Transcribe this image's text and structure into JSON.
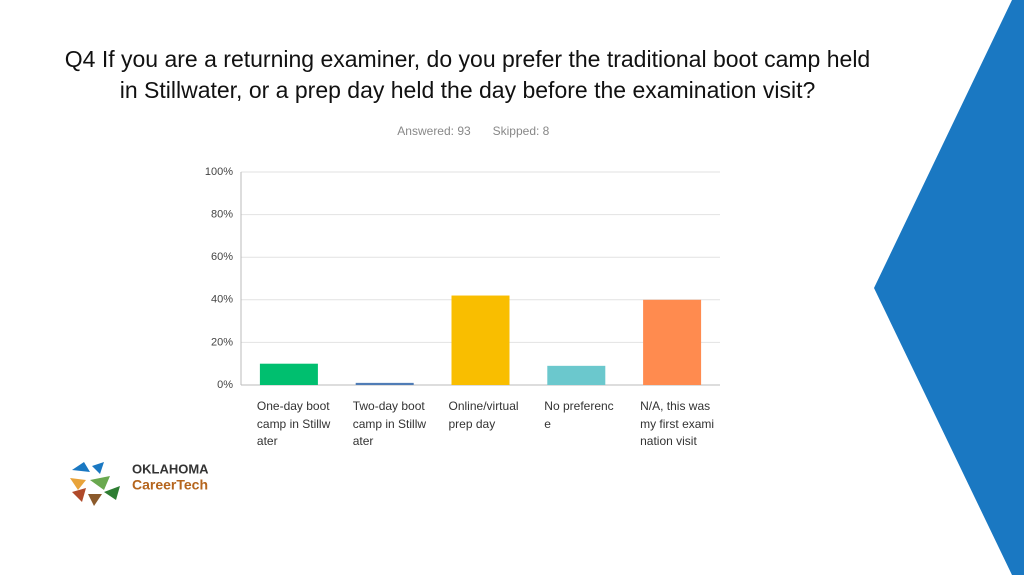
{
  "chart_data": {
    "type": "bar",
    "title": "Q4 If you are a returning examiner, do you prefer the traditional boot camp held in Stillwater, or a prep day held the day before the examination visit?",
    "annotations": [
      "Answered: 93",
      "Skipped: 8"
    ],
    "categories": [
      "One-day boot camp in Stillwater",
      "Two-day boot camp in Stillwater",
      "Online/virtual prep day",
      "No preference",
      "N/A, this was my first examination visit"
    ],
    "values": [
      10,
      1,
      42,
      9,
      40
    ],
    "colors": [
      "#00bf6f",
      "#507cb6",
      "#f9be00",
      "#6bc8cd",
      "#ff8b4f"
    ],
    "ylim": [
      0,
      100
    ],
    "yticks": [
      {
        "value": 0,
        "label": "0%"
      },
      {
        "value": 20,
        "label": "20%"
      },
      {
        "value": 40,
        "label": "40%"
      },
      {
        "value": 60,
        "label": "60%"
      },
      {
        "value": 80,
        "label": "80%"
      },
      {
        "value": 100,
        "label": "100%"
      }
    ],
    "grid": true
  },
  "logo": {
    "line1": "OKLAHOMA",
    "line2": "CareerTech"
  }
}
